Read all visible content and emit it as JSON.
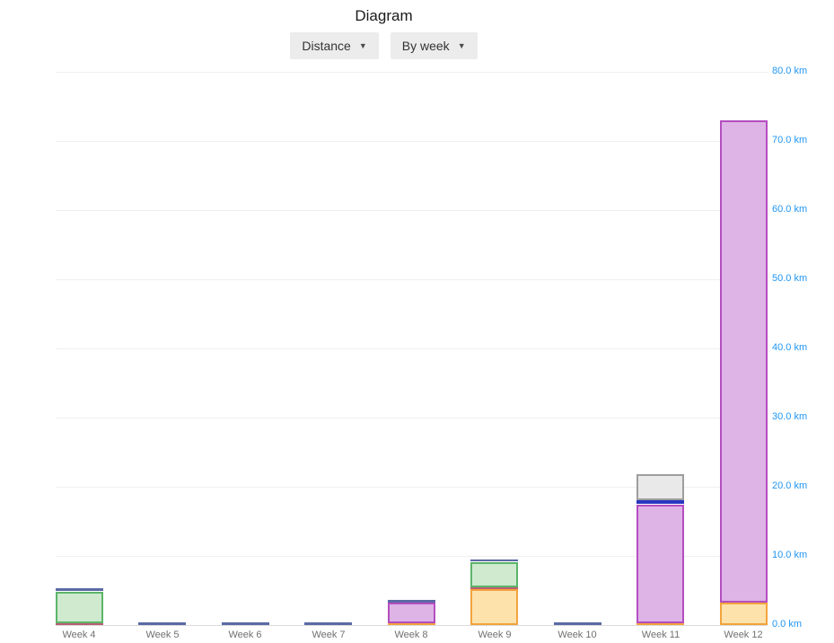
{
  "header": {
    "title": "Diagram"
  },
  "toolbar": {
    "metric_dropdown": {
      "label": "Distance",
      "caret": "▼"
    },
    "period_dropdown": {
      "label": "By week",
      "caret": "▼"
    }
  },
  "colors": {
    "axis_label_blue": "#2196f3",
    "x_label_gray": "#707070",
    "gridline": "#f0f0f0",
    "baseline": "#dbdbdb",
    "button_bg": "#ececec",
    "button_text": "#333333"
  },
  "chart_data": {
    "type": "bar",
    "stacked": true,
    "title": "Diagram",
    "unit": "km",
    "ylim": [
      0,
      80
    ],
    "grid": "horizontal",
    "axis_labels_position": "right",
    "legend": "none",
    "categories": [
      "Week 4",
      "Week 5",
      "Week 6",
      "Week 7",
      "Week 8",
      "Week 9",
      "Week 10",
      "Week 11",
      "Week 12"
    ],
    "y_ticks": [
      "0.0 km",
      "10.0 km",
      "20.0 km",
      "30.0 km",
      "40.0 km",
      "50.0 km",
      "60.0 km",
      "70.0 km",
      "80.0 km"
    ],
    "palette": {
      "orange": {
        "fill": "#fde2ac",
        "border": "#f2a33c"
      },
      "rose": {
        "fill": "#bb5c72",
        "border": "#bb5c72"
      },
      "green": {
        "fill": "#cfeacf",
        "border": "#5cb56a"
      },
      "slate": {
        "fill": "#5b6aa4",
        "border": "#5b6aa4"
      },
      "purple": {
        "fill": "#deb3e6",
        "border": "#b44ec0"
      },
      "blue": {
        "fill": "#2936c0",
        "border": "#2936c0"
      },
      "gray": {
        "fill": "#e9e9e9",
        "border": "#9e9e9e"
      }
    },
    "bars": [
      {
        "category": "Week 4",
        "total": 5.3,
        "segments": [
          {
            "series": "rose",
            "value": 0.3
          },
          {
            "series": "green",
            "value": 4.6
          },
          {
            "series": "slate",
            "value": 0.4
          }
        ]
      },
      {
        "category": "Week 5",
        "total": 0.4,
        "segments": [
          {
            "series": "slate",
            "value": 0.4
          }
        ]
      },
      {
        "category": "Week 6",
        "total": 0.4,
        "segments": [
          {
            "series": "slate",
            "value": 0.4
          }
        ]
      },
      {
        "category": "Week 7",
        "total": 0.4,
        "segments": [
          {
            "series": "slate",
            "value": 0.4
          }
        ]
      },
      {
        "category": "Week 8",
        "total": 3.6,
        "segments": [
          {
            "series": "orange",
            "value": 0.2
          },
          {
            "series": "purple",
            "value": 3.0
          },
          {
            "series": "slate",
            "value": 0.4
          }
        ]
      },
      {
        "category": "Week 9",
        "total": 9.5,
        "segments": [
          {
            "series": "orange",
            "value": 5.2
          },
          {
            "series": "rose",
            "value": 0.3
          },
          {
            "series": "green",
            "value": 3.7
          },
          {
            "series": "slate",
            "value": 0.3
          }
        ]
      },
      {
        "category": "Week 10",
        "total": 0.4,
        "segments": [
          {
            "series": "slate",
            "value": 0.4
          }
        ]
      },
      {
        "category": "Week 11",
        "total": 21.8,
        "segments": [
          {
            "series": "orange",
            "value": 0.3
          },
          {
            "series": "purple",
            "value": 17.2
          },
          {
            "series": "blue",
            "value": 0.5
          },
          {
            "series": "gray",
            "value": 3.8
          }
        ]
      },
      {
        "category": "Week 12",
        "total": 72.9,
        "segments": [
          {
            "series": "orange",
            "value": 3.2
          },
          {
            "series": "purple",
            "value": 69.7
          }
        ]
      }
    ]
  }
}
